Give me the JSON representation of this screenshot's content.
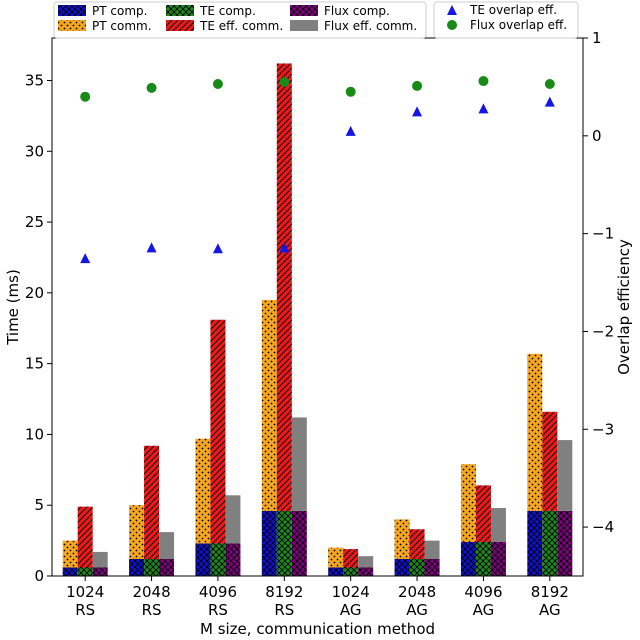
{
  "chart_data": {
    "type": "bar",
    "xlabel": "M size, communication method",
    "ylabel": "Time (ms)",
    "ylabel_right": "Overlap efficiency",
    "ylim": [
      0,
      38
    ],
    "ylim_right": [
      -4.5,
      1
    ],
    "yticks": [
      0,
      5,
      10,
      15,
      20,
      25,
      30,
      35
    ],
    "yticks_right": [
      -4,
      -3,
      -2,
      -1,
      0,
      1
    ],
    "categories": [
      {
        "size": "1024",
        "method": "RS"
      },
      {
        "size": "2048",
        "method": "RS"
      },
      {
        "size": "4096",
        "method": "RS"
      },
      {
        "size": "8192",
        "method": "RS"
      },
      {
        "size": "1024",
        "method": "AG"
      },
      {
        "size": "2048",
        "method": "AG"
      },
      {
        "size": "4096",
        "method": "AG"
      },
      {
        "size": "8192",
        "method": "AG"
      }
    ],
    "series": [
      {
        "name": "PT comp.",
        "values": [
          0.6,
          1.2,
          2.3,
          4.6,
          0.6,
          1.2,
          2.4,
          4.6
        ]
      },
      {
        "name": "PT comm.",
        "values": [
          1.9,
          3.8,
          7.4,
          14.9,
          1.4,
          2.8,
          5.5,
          11.1
        ]
      },
      {
        "name": "TE comp.",
        "values": [
          0.6,
          1.2,
          2.3,
          4.6,
          0.6,
          1.2,
          2.4,
          4.6
        ]
      },
      {
        "name": "TE eff. comm.",
        "values": [
          4.3,
          8.0,
          15.8,
          31.6,
          1.3,
          2.1,
          4.0,
          7.0
        ]
      },
      {
        "name": "Flux comp.",
        "values": [
          0.6,
          1.2,
          2.3,
          4.6,
          0.6,
          1.2,
          2.4,
          4.6
        ]
      },
      {
        "name": "Flux eff. comm.",
        "values": [
          1.1,
          1.9,
          3.4,
          6.6,
          0.8,
          1.3,
          2.4,
          5.0
        ]
      }
    ],
    "overlap_series": [
      {
        "name": "TE overlap eff.",
        "values": [
          -1.25,
          -1.14,
          -1.15,
          -1.14,
          0.05,
          0.25,
          0.28,
          0.35
        ]
      },
      {
        "name": "Flux overlap eff.",
        "values": [
          0.4,
          0.49,
          0.53,
          0.55,
          0.45,
          0.51,
          0.56,
          0.53
        ]
      }
    ],
    "legend_left": [
      {
        "label": "PT comp.",
        "style": "pt-comp"
      },
      {
        "label": "TE comp.",
        "style": "te-comp"
      },
      {
        "label": "Flux comp.",
        "style": "flux-comp"
      },
      {
        "label": "PT comm.",
        "style": "pt-comm"
      },
      {
        "label": "TE eff. comm.",
        "style": "te-comm"
      },
      {
        "label": "Flux eff. comm.",
        "style": "flux-comm"
      }
    ],
    "legend_right": [
      {
        "label": "TE overlap eff.",
        "marker": "triangle"
      },
      {
        "label": "Flux overlap eff.",
        "marker": "circle"
      }
    ],
    "colors": {
      "pt_comp": "#1010d0",
      "pt_comm": "#f5a623",
      "te_comp": "#1a8a1a",
      "te_comm": "#f01818",
      "flux_comp": "#800080",
      "flux_comm": "#808080",
      "te_marker": "#1515e6",
      "flux_marker": "#178a17"
    }
  }
}
